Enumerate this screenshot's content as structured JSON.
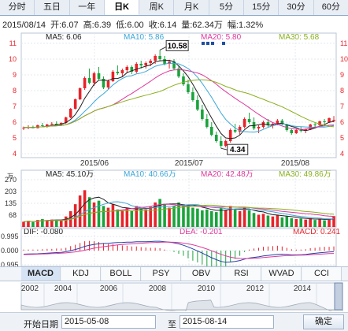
{
  "tabs": [
    "分时",
    "五日",
    "一年",
    "日K",
    "周K",
    "月K",
    "5分",
    "15分",
    "30分",
    "60分"
  ],
  "active_tab": 3,
  "info": {
    "date": "2015/08/14",
    "open": "开:6.07",
    "high": "高:6.39",
    "low": "低:6.00",
    "close": "收:6.14",
    "volume": "量:62.34万",
    "change": "幅:1.32%"
  },
  "ma_legend": {
    "ma5": "MA5: 6.06",
    "ma10": "MA10: 5.86",
    "ma20": "MA20: 5.80",
    "ma30": "MA30: 5.68"
  },
  "vol_legend": {
    "ma5": "MA5: 45.10万",
    "ma10": "MA10: 40.66万",
    "ma20": "MA20: 42.48万",
    "ma30": "MA30: 49.86万"
  },
  "macd_legend": {
    "dif": "DIF: -0.080",
    "dea": "DEA: -0.201",
    "macd": "MACD: 0.241"
  },
  "price_axis": [
    "11",
    "10",
    "9",
    "8",
    "7",
    "6",
    "5",
    "4"
  ],
  "vol_axis": [
    "270",
    "203",
    "135",
    "68"
  ],
  "vol_unit": "万",
  "macd_axis": [
    "0.995",
    "0.000",
    "0.995"
  ],
  "x_labels": [
    "2015/06",
    "2015/07",
    "2015/08"
  ],
  "annotations": {
    "high": "10.58",
    "low": "4.34"
  },
  "toolbar": [
    "MACD",
    "KDJ",
    "BOLL",
    "PSY",
    "OBV",
    "RSI",
    "WVAD",
    "CCI"
  ],
  "toolbar_active": 0,
  "overview_years": [
    "2002",
    "2004",
    "2006",
    "2008",
    "2010",
    "2012",
    "2014"
  ],
  "date_bar": {
    "start_label": "开始日期",
    "start_value": "2015-05-08",
    "to_label": "至",
    "end_value": "2015-08-14",
    "confirm": "确定"
  },
  "colors": {
    "up": "#e8232a",
    "down": "#1aa33c",
    "ma5": "#222222",
    "ma10": "#3aa6d8",
    "ma20": "#e0389c",
    "ma30": "#8ab01c"
  },
  "chart_data": {
    "type": "candlestick",
    "candles": [
      [
        5.6,
        5.72,
        5.5,
        5.65
      ],
      [
        5.65,
        5.8,
        5.55,
        5.7
      ],
      [
        5.7,
        5.78,
        5.6,
        5.62
      ],
      [
        5.62,
        5.85,
        5.6,
        5.8
      ],
      [
        5.8,
        5.95,
        5.7,
        5.75
      ],
      [
        5.75,
        5.9,
        5.65,
        5.85
      ],
      [
        5.85,
        6.0,
        5.78,
        5.9
      ],
      [
        5.9,
        6.05,
        5.82,
        5.88
      ],
      [
        5.88,
        6.0,
        5.8,
        5.95
      ],
      [
        5.95,
        6.35,
        5.9,
        6.3
      ],
      [
        6.3,
        6.9,
        6.25,
        6.85
      ],
      [
        6.85,
        7.5,
        6.8,
        7.45
      ],
      [
        7.45,
        8.2,
        7.4,
        8.15
      ],
      [
        8.15,
        8.9,
        8.05,
        8.8
      ],
      [
        8.8,
        9.4,
        8.4,
        8.5
      ],
      [
        8.5,
        9.2,
        8.3,
        9.1
      ],
      [
        9.1,
        9.5,
        8.7,
        8.75
      ],
      [
        8.75,
        8.9,
        8.1,
        8.2
      ],
      [
        8.2,
        8.7,
        8.1,
        8.6
      ],
      [
        8.6,
        9.3,
        8.55,
        9.2
      ],
      [
        9.2,
        9.6,
        9.0,
        9.1
      ],
      [
        9.1,
        9.4,
        8.9,
        9.3
      ],
      [
        9.3,
        9.6,
        9.1,
        9.5
      ],
      [
        9.5,
        9.6,
        9.05,
        9.2
      ],
      [
        9.2,
        9.8,
        9.1,
        9.7
      ],
      [
        9.7,
        9.9,
        9.4,
        9.6
      ],
      [
        9.6,
        9.85,
        9.4,
        9.75
      ],
      [
        9.75,
        10.0,
        9.55,
        9.9
      ],
      [
        9.9,
        10.3,
        9.7,
        10.2
      ],
      [
        10.2,
        10.58,
        9.9,
        10.0
      ],
      [
        10.0,
        10.2,
        9.6,
        9.7
      ],
      [
        9.7,
        9.95,
        9.4,
        9.85
      ],
      [
        9.85,
        10.0,
        9.3,
        9.4
      ],
      [
        9.4,
        9.6,
        8.8,
        8.9
      ],
      [
        8.9,
        9.1,
        8.3,
        8.4
      ],
      [
        8.4,
        8.7,
        7.8,
        7.9
      ],
      [
        7.9,
        8.2,
        7.3,
        7.4
      ],
      [
        7.4,
        7.7,
        6.7,
        6.8
      ],
      [
        6.8,
        7.1,
        6.1,
        6.2
      ],
      [
        6.2,
        6.5,
        5.6,
        5.7
      ],
      [
        5.7,
        6.0,
        5.1,
        5.2
      ],
      [
        5.2,
        5.4,
        4.7,
        4.8
      ],
      [
        4.8,
        5.1,
        4.34,
        4.5
      ],
      [
        4.5,
        4.9,
        4.4,
        4.8
      ],
      [
        4.8,
        5.6,
        4.7,
        5.5
      ],
      [
        5.5,
        5.9,
        5.3,
        5.4
      ],
      [
        5.4,
        5.8,
        5.2,
        5.7
      ],
      [
        5.7,
        6.3,
        5.6,
        6.2
      ],
      [
        6.2,
        6.6,
        5.9,
        6.0
      ],
      [
        6.0,
        6.3,
        5.5,
        5.6
      ],
      [
        5.6,
        5.8,
        5.3,
        5.7
      ],
      [
        5.7,
        6.1,
        5.6,
        6.0
      ],
      [
        6.0,
        6.2,
        5.7,
        5.8
      ],
      [
        5.8,
        6.0,
        5.6,
        5.9
      ],
      [
        5.9,
        6.2,
        5.8,
        6.1
      ],
      [
        6.1,
        6.2,
        5.8,
        5.85
      ],
      [
        5.85,
        5.9,
        5.4,
        5.5
      ],
      [
        5.5,
        5.6,
        5.2,
        5.3
      ],
      [
        5.3,
        5.6,
        5.25,
        5.5
      ],
      [
        5.5,
        5.7,
        5.35,
        5.45
      ],
      [
        5.45,
        5.6,
        5.3,
        5.55
      ],
      [
        5.55,
        5.9,
        5.5,
        5.85
      ],
      [
        5.85,
        6.0,
        5.7,
        5.8
      ],
      [
        5.8,
        6.1,
        5.75,
        6.05
      ],
      [
        6.05,
        6.2,
        5.9,
        6.0
      ],
      [
        6.0,
        6.3,
        5.95,
        6.25
      ],
      [
        6.07,
        6.39,
        6.0,
        6.14
      ]
    ],
    "ylim": [
      4,
      11
    ],
    "volume_ylim": [
      0,
      270
    ],
    "volume": [
      30,
      35,
      28,
      40,
      45,
      38,
      42,
      36,
      40,
      60,
      90,
      130,
      180,
      210,
      170,
      140,
      150,
      120,
      110,
      130,
      100,
      95,
      110,
      90,
      120,
      105,
      100,
      115,
      140,
      160,
      130,
      110,
      120,
      140,
      130,
      125,
      110,
      105,
      95,
      100,
      90,
      85,
      110,
      95,
      120,
      100,
      90,
      110,
      95,
      80,
      70,
      75,
      65,
      60,
      70,
      55,
      60,
      50,
      45,
      48,
      42,
      50,
      40,
      45,
      38,
      42,
      62
    ],
    "macd_ylim": [
      -0.995,
      0.995
    ],
    "dif": [
      -0.25,
      -0.24,
      -0.23,
      -0.22,
      -0.2,
      -0.18,
      -0.16,
      -0.14,
      -0.12,
      -0.08,
      0.0,
      0.08,
      0.18,
      0.3,
      0.38,
      0.44,
      0.48,
      0.5,
      0.51,
      0.55,
      0.57,
      0.58,
      0.6,
      0.6,
      0.62,
      0.62,
      0.63,
      0.64,
      0.66,
      0.66,
      0.63,
      0.6,
      0.55,
      0.48,
      0.38,
      0.26,
      0.12,
      -0.02,
      -0.18,
      -0.34,
      -0.5,
      -0.64,
      -0.76,
      -0.82,
      -0.8,
      -0.76,
      -0.7,
      -0.6,
      -0.52,
      -0.48,
      -0.44,
      -0.38,
      -0.34,
      -0.3,
      -0.26,
      -0.25,
      -0.27,
      -0.3,
      -0.3,
      -0.29,
      -0.27,
      -0.22,
      -0.19,
      -0.15,
      -0.12,
      -0.1,
      -0.08
    ],
    "dea": [
      -0.28,
      -0.27,
      -0.26,
      -0.25,
      -0.24,
      -0.23,
      -0.21,
      -0.2,
      -0.18,
      -0.16,
      -0.13,
      -0.09,
      -0.04,
      0.03,
      0.1,
      0.17,
      0.23,
      0.28,
      0.32,
      0.36,
      0.4,
      0.43,
      0.46,
      0.48,
      0.5,
      0.52,
      0.54,
      0.56,
      0.58,
      0.59,
      0.6,
      0.6,
      0.59,
      0.57,
      0.53,
      0.48,
      0.41,
      0.32,
      0.22,
      0.11,
      -0.01,
      -0.14,
      -0.26,
      -0.37,
      -0.46,
      -0.52,
      -0.55,
      -0.56,
      -0.55,
      -0.54,
      -0.52,
      -0.49,
      -0.46,
      -0.43,
      -0.4,
      -0.37,
      -0.35,
      -0.34,
      -0.33,
      -0.32,
      -0.31,
      -0.29,
      -0.27,
      -0.25,
      -0.23,
      -0.21,
      -0.201
    ]
  }
}
